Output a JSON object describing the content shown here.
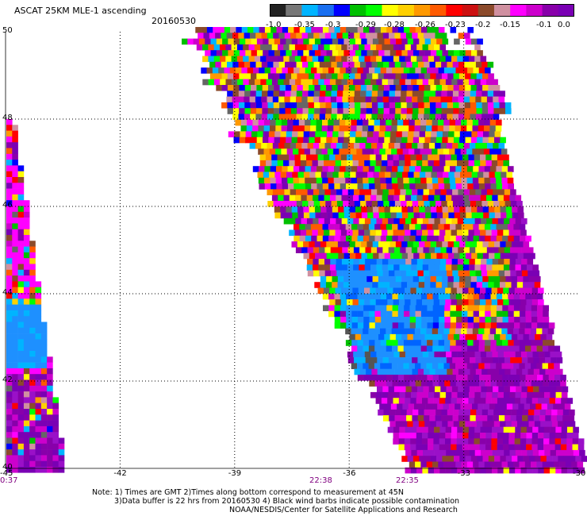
{
  "header": {
    "title": "ASCAT 25KM MLE-1 ascending",
    "date": "20160530"
  },
  "colorbar": {
    "labels": [
      "-1.0",
      "-0.35",
      "-0.3",
      "-0.29",
      "-0.28",
      "-0.26",
      "-0.23",
      "-0.2",
      "-0.15",
      "-0.1",
      "0.0"
    ],
    "colors": [
      "#222222",
      "#777777",
      "#00b4ff",
      "#1a6ff0",
      "#0000ff",
      "#00c000",
      "#00ff00",
      "#ffff00",
      "#ffd000",
      "#ff9900",
      "#ff5a00",
      "#ff0000",
      "#cc1111",
      "#8b4a2b",
      "#d090a0",
      "#ff00ff",
      "#cc00cc",
      "#8800aa",
      "#7a00b4"
    ]
  },
  "map": {
    "lat_labels": [
      "50",
      "48",
      "46",
      "44",
      "42",
      "40"
    ],
    "lon_labels": [
      "-45",
      "-42",
      "-39",
      "-36",
      "-33",
      "-30"
    ],
    "lon_range": [
      -45,
      -30
    ],
    "lat_range": [
      40,
      50
    ],
    "pass_times": [
      "0:37",
      "22:38",
      "22:35"
    ]
  },
  "notes": {
    "line1": "Note: 1) Times are GMT 2)Times along bottom correspond to measurement at 45N",
    "line2": "3)Data buffer is 22 hrs from 20160530 4) Black wind barbs indicate possible contamination",
    "line3": "NOAA/NESDIS/Center for Satellite Applications and Research"
  }
}
